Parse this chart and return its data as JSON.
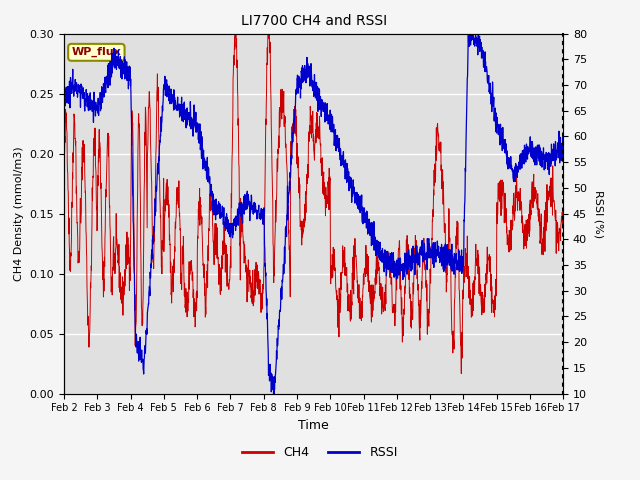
{
  "title": "LI7700 CH4 and RSSI",
  "xlabel": "Time",
  "ylabel_left": "CH4 Density (mmol/m3)",
  "ylabel_right": "RSSI (%)",
  "annotation": "WP_flux",
  "x_ticks": [
    "Feb 2",
    "Feb 3",
    "Feb 4",
    "Feb 5",
    "Feb 6",
    "Feb 7",
    "Feb 8",
    "Feb 9",
    "Feb 10",
    "Feb 11",
    "Feb 12",
    "Feb 13",
    "Feb 14",
    "Feb 15",
    "Feb 16",
    "Feb 17"
  ],
  "ylim_left": [
    0.0,
    0.3
  ],
  "ylim_right": [
    10,
    80
  ],
  "yticks_left": [
    0.0,
    0.05,
    0.1,
    0.15,
    0.2,
    0.25,
    0.3
  ],
  "yticks_right": [
    10,
    15,
    20,
    25,
    30,
    35,
    40,
    45,
    50,
    55,
    60,
    65,
    70,
    75,
    80
  ],
  "ch4_color": "#cc0000",
  "rssi_color": "#0000cc",
  "plot_bg_color": "#e0e0e0",
  "fig_bg_color": "#f5f5f5"
}
